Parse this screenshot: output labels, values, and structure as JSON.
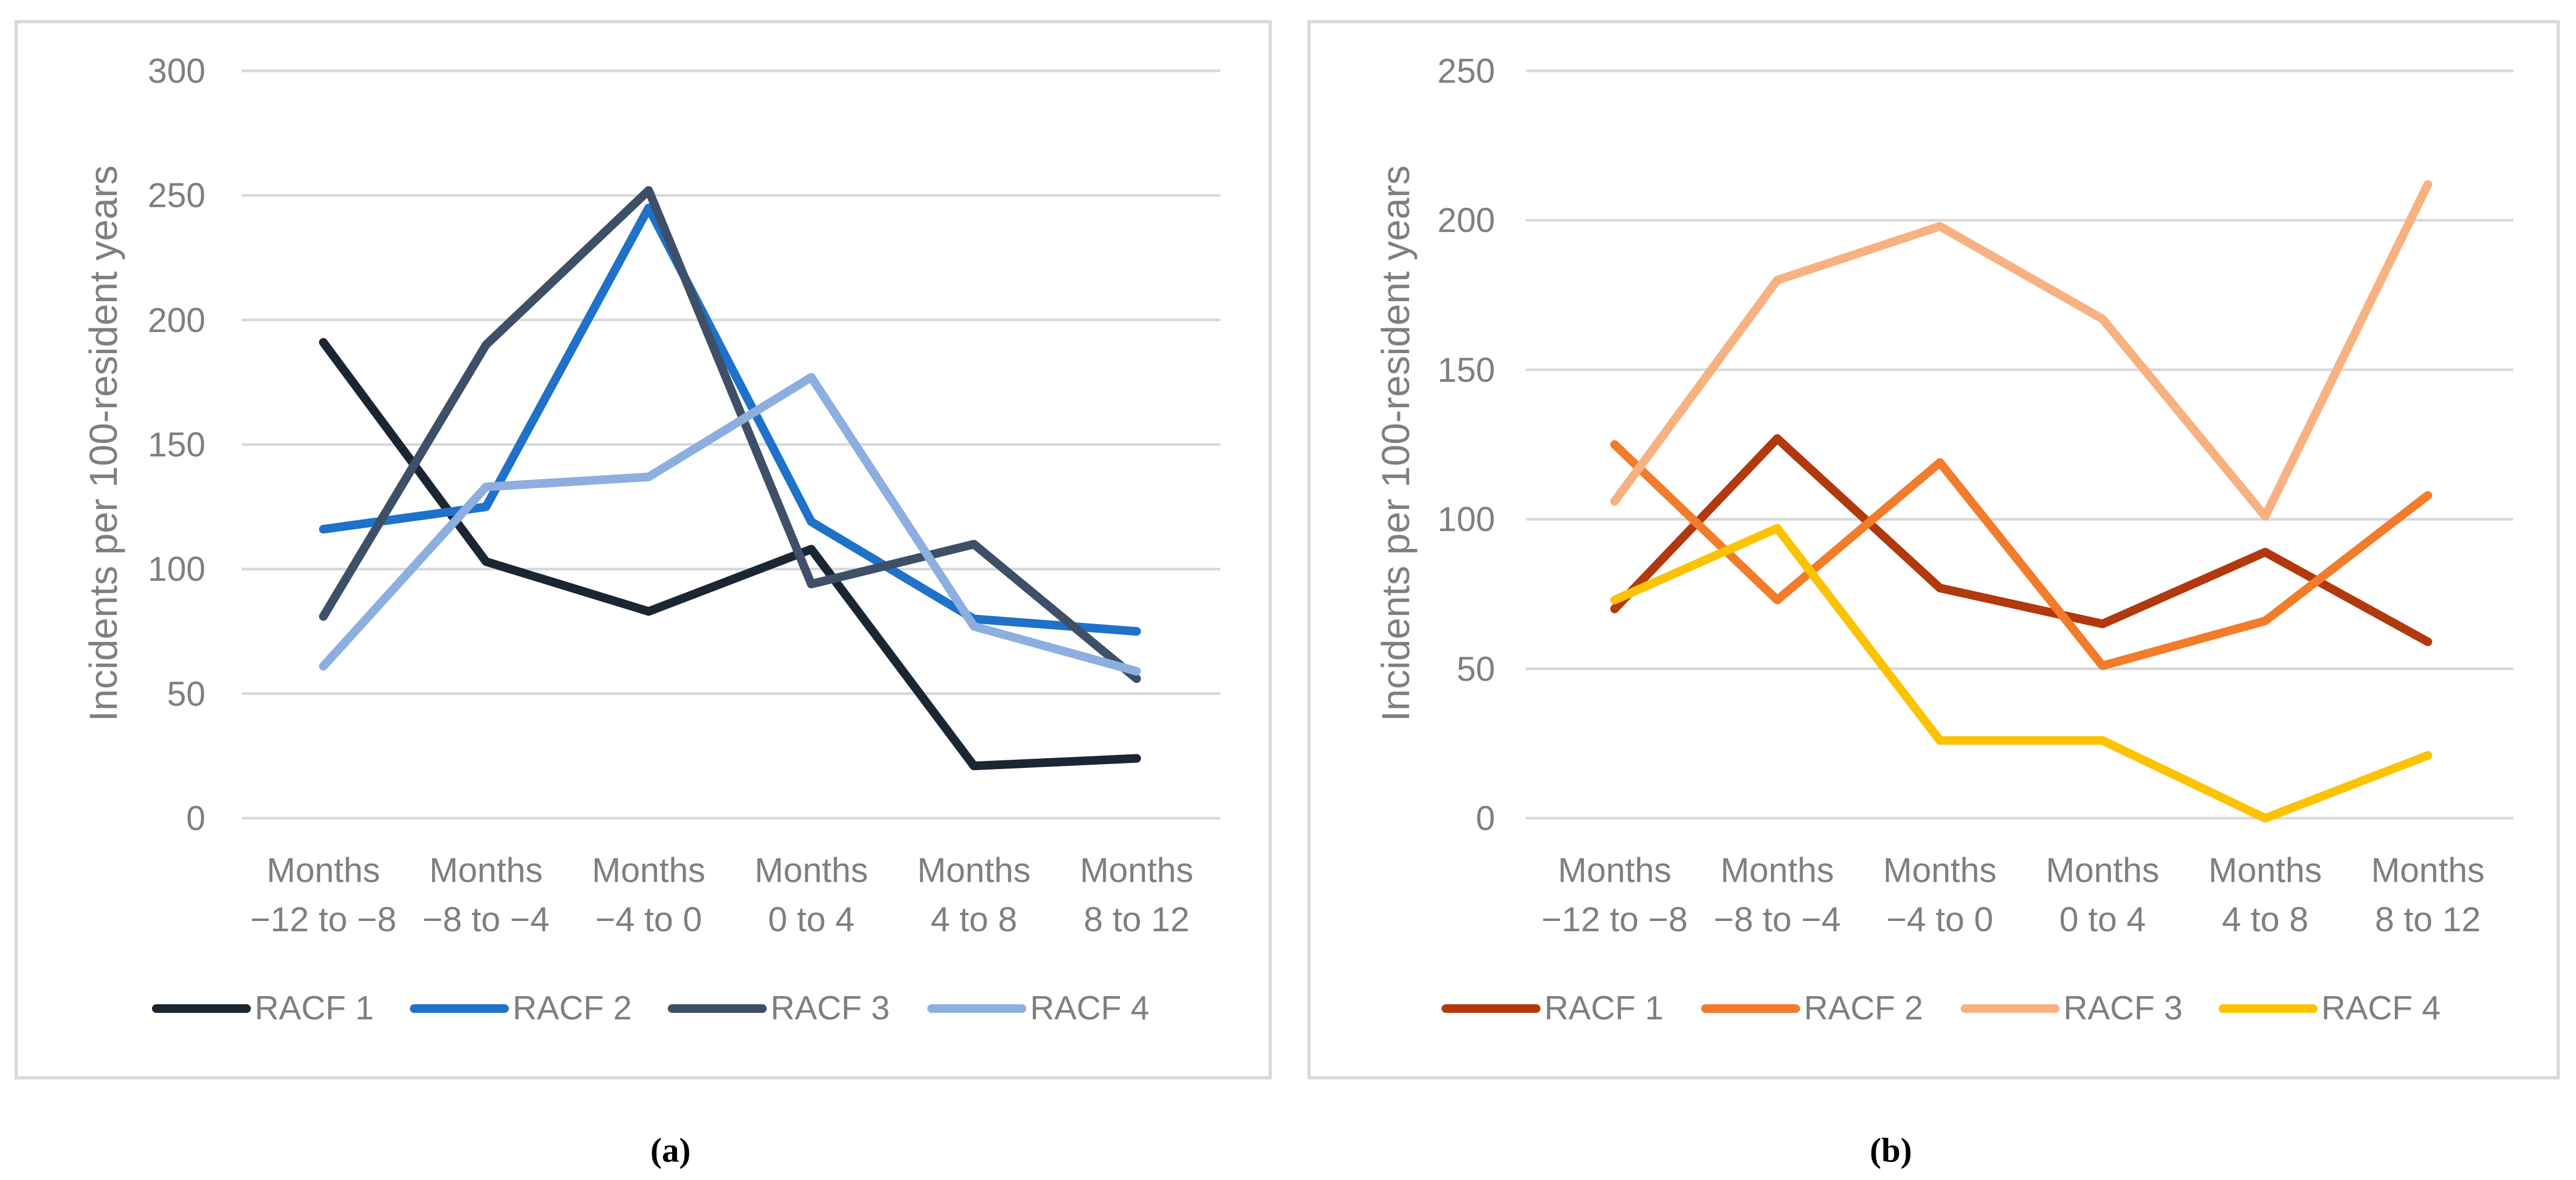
{
  "chart_data": [
    {
      "type": "line",
      "panel_label": "(a)",
      "title": "",
      "xlabel": "",
      "ylabel": "Incidents per 100-resident years",
      "categories": [
        "Months\n−12 to −8",
        "Months\n−8 to −4",
        "Months\n−4 to 0",
        "Months\n0 to 4",
        "Months\n4 to 8",
        "Months\n8 to 12"
      ],
      "ylim": [
        0,
        300
      ],
      "yticks": [
        0,
        50,
        100,
        150,
        200,
        250,
        300
      ],
      "grid": true,
      "legend": "bottom",
      "series": [
        {
          "name": "RACF 1",
          "color": "#1b2633",
          "values": [
            191,
            103,
            83,
            108,
            21,
            24
          ]
        },
        {
          "name": "RACF 2",
          "color": "#1f72c9",
          "values": [
            116,
            125,
            245,
            119,
            80,
            75
          ]
        },
        {
          "name": "RACF 3",
          "color": "#3e5067",
          "values": [
            81,
            190,
            252,
            94,
            110,
            56
          ]
        },
        {
          "name": "RACF 4",
          "color": "#8cafe0",
          "values": [
            61,
            133,
            137,
            177,
            77,
            59
          ]
        }
      ]
    },
    {
      "type": "line",
      "panel_label": "(b)",
      "title": "",
      "xlabel": "",
      "ylabel": "Incidents per 100-resident years",
      "categories": [
        "Months\n−12 to −8",
        "Months\n−8 to −4",
        "Months\n−4 to 0",
        "Months\n0 to 4",
        "Months\n4 to 8",
        "Months\n8 to 12"
      ],
      "ylim": [
        0,
        250
      ],
      "yticks": [
        0,
        50,
        100,
        150,
        200,
        250
      ],
      "grid": true,
      "legend": "bottom",
      "series": [
        {
          "name": "RACF 1",
          "color": "#b2380d",
          "values": [
            70,
            127,
            77,
            65,
            89,
            59
          ]
        },
        {
          "name": "RACF 2",
          "color": "#f27c2b",
          "values": [
            125,
            73,
            119,
            51,
            66,
            108
          ]
        },
        {
          "name": "RACF 3",
          "color": "#f8b180",
          "values": [
            106,
            180,
            198,
            167,
            101,
            212
          ]
        },
        {
          "name": "RACF 4",
          "color": "#fbc302",
          "values": [
            73,
            97,
            26,
            26,
            0,
            21
          ]
        }
      ]
    }
  ]
}
